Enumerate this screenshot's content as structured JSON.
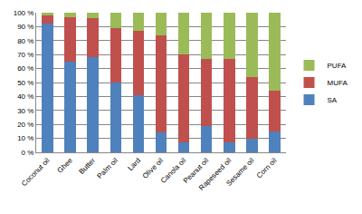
{
  "chart_data": {
    "type": "bar",
    "stacked": true,
    "categories": [
      "Coconut oil",
      "Ghee",
      "Butter",
      "Palm oil",
      "Lard",
      "Olive oil",
      "Canola oil",
      "Peanut oil",
      "Rapeseed oil",
      "Sesame oil",
      "Corn oil"
    ],
    "series": [
      {
        "name": "SA",
        "color": "#4f81bd",
        "values": [
          92,
          65,
          68,
          50,
          41,
          14,
          7,
          19,
          7,
          10,
          15
        ]
      },
      {
        "name": "MUFA",
        "color": "#c0504d",
        "values": [
          6,
          32,
          28,
          39,
          46,
          70,
          63,
          48,
          60,
          44,
          29
        ]
      },
      {
        "name": "PUFA",
        "color": "#9bbb59",
        "values": [
          2,
          3,
          4,
          11,
          13,
          16,
          30,
          33,
          33,
          46,
          56
        ]
      }
    ],
    "ylim": [
      0,
      100
    ],
    "yticks": [
      {
        "value": 0,
        "label": "0 %"
      },
      {
        "value": 10,
        "label": "10 %"
      },
      {
        "value": 20,
        "label": "20 %"
      },
      {
        "value": 30,
        "label": "30 %"
      },
      {
        "value": 40,
        "label": "40 %"
      },
      {
        "value": 50,
        "label": "50 %"
      },
      {
        "value": 60,
        "label": "60 %"
      },
      {
        "value": 70,
        "label": "70 %"
      },
      {
        "value": 80,
        "label": "80 %"
      },
      {
        "value": 90,
        "label": "90 %"
      },
      {
        "value": 100,
        "label": "100 %"
      }
    ],
    "grid": true,
    "legend": "right"
  }
}
